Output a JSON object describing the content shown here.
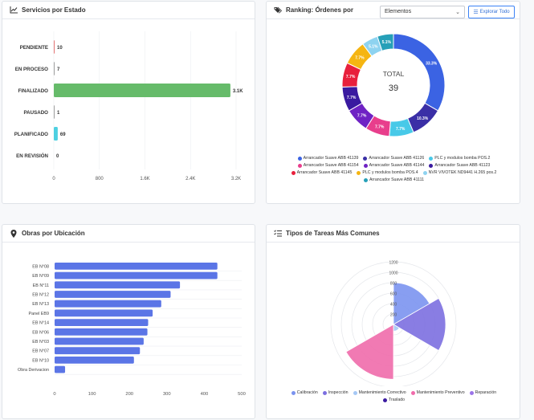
{
  "panels": {
    "status": {
      "title": "Servicios por Estado",
      "icon": "line-chart-icon"
    },
    "ranking": {
      "title": "Ranking: Órdenes por",
      "icon": "tags-icon",
      "select_value": "Elementos",
      "explore_label": "Explorar Todo"
    },
    "location": {
      "title": "Obras por Ubicación",
      "icon": "map-pin-icon"
    },
    "tasks": {
      "title": "Tipos de Tareas Más Comunes",
      "icon": "list-icon"
    }
  },
  "chart_data": [
    {
      "id": "status",
      "type": "bar",
      "orientation": "horizontal",
      "categories": [
        "PENDIENTE",
        "EN PROCESO",
        "FINALIZADO",
        "PAUSADO",
        "PLANIFICADO",
        "EN REVISIÓN"
      ],
      "values": [
        10,
        7,
        3100,
        1,
        69,
        0
      ],
      "value_labels": [
        "10",
        "7",
        "3.1K",
        "1",
        "69",
        "0"
      ],
      "colors": [
        "#e57373",
        "#9e9e9e",
        "#66bb6a",
        "#9e9e9e",
        "#4dd0e1",
        "#9e9e9e"
      ],
      "xticks": [
        "0",
        "800",
        "1.6K",
        "2.4K",
        "3.2K"
      ],
      "xlim": [
        0,
        3200
      ]
    },
    {
      "id": "ranking",
      "type": "pie",
      "donut": true,
      "center_label": "TOTAL",
      "center_value": "39",
      "slices": [
        {
          "label": "Arrancador Suave ABB 41139",
          "value": 33.3,
          "text": "33.3%",
          "color": "#3b63e3"
        },
        {
          "label": "Arrancador Suave ABB 41126",
          "value": 10.3,
          "text": "10.3%",
          "color": "#3a2fa6"
        },
        {
          "label": "PLC y modulos bomba POS.2",
          "value": 7.7,
          "text": "7.7%",
          "color": "#48c9e8"
        },
        {
          "label": "Arrancador Suave ABB 41154",
          "value": 7.7,
          "text": "7.7%",
          "color": "#e83e8c"
        },
        {
          "label": "Arrancador Suave ABB 41144",
          "value": 7.7,
          "text": "7.7%",
          "color": "#6f22c4"
        },
        {
          "label": "Arrancador Suave ABB 41123",
          "value": 7.7,
          "text": "7.7%",
          "color": "#3a1aa0"
        },
        {
          "label": "Arrancador Suave ABB 41145",
          "value": 7.7,
          "text": "7.7%",
          "color": "#e8203c"
        },
        {
          "label": "PLC y modulos bomba POS.4",
          "value": 7.7,
          "text": "7.7%",
          "color": "#f5b512"
        },
        {
          "label": "NVR VIVOTEK ND9441 H.265 pos.2",
          "value": 5.1,
          "text": "5.1%",
          "color": "#8ed3f0"
        },
        {
          "label": "Arrancador Suave ABB 41111",
          "value": 5.1,
          "text": "5.1%",
          "color": "#26a0b8"
        }
      ]
    },
    {
      "id": "location",
      "type": "bar",
      "orientation": "horizontal",
      "categories": [
        "EB N°08",
        "EB N°09",
        "EB N°11",
        "EB N°12",
        "EB N°13",
        "Panel EB9",
        "EB N°14",
        "EB N°06",
        "EB N°03",
        "EB N°07",
        "EB N°10",
        "Obra Derivacion"
      ],
      "values": [
        435,
        435,
        335,
        310,
        285,
        262,
        250,
        248,
        238,
        228,
        212,
        28
      ],
      "color": "#5b75e6",
      "xticks": [
        "0",
        "100",
        "200",
        "300",
        "400",
        "500"
      ],
      "xlim": [
        0,
        500
      ]
    },
    {
      "id": "tasks",
      "type": "polar-area",
      "rticks": [
        "1200",
        "1000",
        "800",
        "600",
        "400",
        "200"
      ],
      "rlim": [
        0,
        1200
      ],
      "series": [
        {
          "name": "Calibración",
          "value": 800,
          "color": "#7b93ef"
        },
        {
          "name": "Inspección",
          "value": 1000,
          "color": "#7c6fe0"
        },
        {
          "name": "Mantenimiento Correctivo",
          "value": 130,
          "color": "#a5c8f5"
        },
        {
          "name": "Mantenimiento Preventivo",
          "value": 1050,
          "color": "#f06bab"
        },
        {
          "name": "Reparación",
          "value": 0,
          "color": "#9b74e8"
        },
        {
          "name": "Traslado",
          "value": 0,
          "color": "#3a1aa0"
        }
      ]
    }
  ]
}
